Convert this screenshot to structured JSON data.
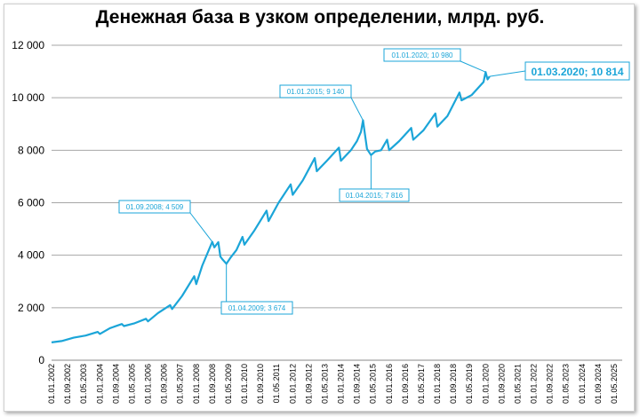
{
  "chart_data": {
    "type": "line",
    "title": "Денежная база в узком определении, млрд. руб.",
    "xlabel": "",
    "ylabel": "",
    "ylim": [
      0,
      12000
    ],
    "yticks": [
      "0",
      "2 000",
      "4 000",
      "6 000",
      "8 000",
      "10 000",
      "12 000"
    ],
    "xlim": [
      "2002-01",
      "2025-09"
    ],
    "xticks": [
      "01.01.2002",
      "01.09.2002",
      "01.05.2003",
      "01.01.2004",
      "01.09.2004",
      "01.05.2005",
      "01.01.2006",
      "01.09.2006",
      "01.05.2007",
      "01.01.2008",
      "01.09.2008",
      "01.05.2009",
      "01.01.2010",
      "01.09.2010",
      "01.05.2011",
      "01.01.2012",
      "01.09.2012",
      "01.05.2013",
      "01.01.2014",
      "01.09.2014",
      "01.05.2015",
      "01.01.2016",
      "01.09.2016",
      "01.05.2017",
      "01.01.2018",
      "01.09.2018",
      "01.05.2019",
      "01.01.2020",
      "01.09.2020",
      "01.05.2021",
      "01.01.2022",
      "01.09.2022",
      "01.05.2023",
      "01.01.2024",
      "01.09.2024",
      "01.05.2025"
    ],
    "grid": true,
    "color": "#1ba5d8",
    "x": [
      "2002-01",
      "2002-06",
      "2002-12",
      "2003-06",
      "2003-12",
      "2004-01",
      "2004-06",
      "2004-12",
      "2005-01",
      "2005-06",
      "2005-12",
      "2006-01",
      "2006-06",
      "2006-12",
      "2007-01",
      "2007-06",
      "2007-12",
      "2008-01",
      "2008-04",
      "2008-09",
      "2008-10",
      "2008-12",
      "2009-01",
      "2009-02",
      "2009-04",
      "2009-06",
      "2009-09",
      "2009-12",
      "2010-01",
      "2010-06",
      "2010-12",
      "2011-01",
      "2011-06",
      "2011-12",
      "2012-01",
      "2012-06",
      "2012-12",
      "2013-01",
      "2013-06",
      "2013-12",
      "2014-01",
      "2014-06",
      "2014-09",
      "2014-11",
      "2014-12",
      "2015-01",
      "2015-02",
      "2015-04",
      "2015-06",
      "2015-09",
      "2015-12",
      "2016-01",
      "2016-06",
      "2016-12",
      "2017-01",
      "2017-06",
      "2017-12",
      "2018-01",
      "2018-06",
      "2018-12",
      "2019-01",
      "2019-06",
      "2019-12",
      "2020-01",
      "2020-02",
      "2020-03"
    ],
    "series": [
      {
        "values": [
          680,
          730,
          860,
          940,
          1080,
          1000,
          1220,
          1380,
          1300,
          1400,
          1580,
          1480,
          1800,
          2100,
          1950,
          2450,
          3200,
          2900,
          3600,
          4509,
          4300,
          4500,
          3950,
          3850,
          3674,
          3900,
          4200,
          4700,
          4400,
          4950,
          5700,
          5300,
          6000,
          6700,
          6300,
          6850,
          7700,
          7200,
          7600,
          8100,
          7600,
          8000,
          8350,
          8700,
          9140,
          8600,
          8050,
          7816,
          7950,
          8000,
          8400,
          8000,
          8350,
          8850,
          8400,
          8750,
          9400,
          8900,
          9300,
          10200,
          9900,
          10100,
          10600,
          10980,
          10700,
          10814
        ]
      }
    ],
    "annotations": [
      {
        "label": "01.01.2020; 10 980",
        "x": "2020-01",
        "y": 10980
      },
      {
        "label": "01.03.2020; 10 814",
        "x": "2020-03",
        "y": 10814
      },
      {
        "label": "01.01.2015; 9 140",
        "x": "2014-12",
        "y": 9140
      },
      {
        "label": "01.04.2015; 7 816",
        "x": "2015-04",
        "y": 7816
      },
      {
        "label": "01.09.2008; 4 509",
        "x": "2008-09",
        "y": 4509
      },
      {
        "label": "01.04.2009; 3 674",
        "x": "2009-04",
        "y": 3674
      }
    ]
  }
}
